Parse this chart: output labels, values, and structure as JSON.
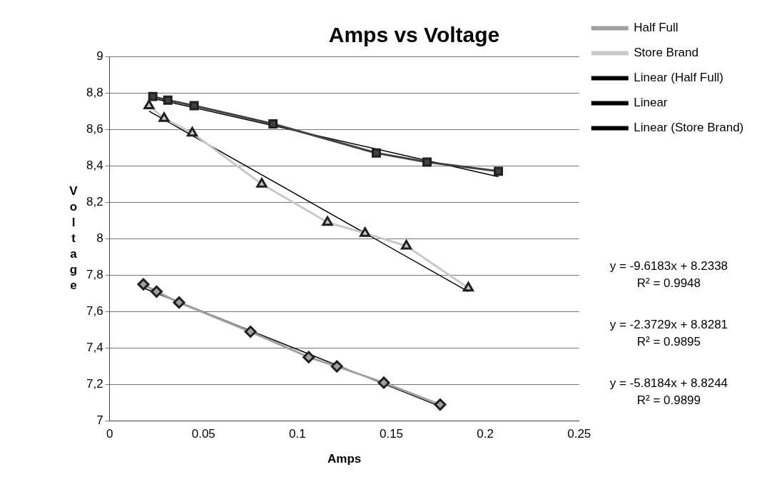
{
  "chart_data": {
    "type": "line",
    "title": "Amps vs Voltage",
    "xlabel": "Amps",
    "ylabel": "Voltage",
    "xlim": [
      0,
      0.25
    ],
    "xticks": [
      0,
      0.05,
      0.1,
      0.15,
      0.2,
      0.25
    ],
    "ylim": [
      7,
      9
    ],
    "yticks": [
      7,
      {
        "value": 7.2,
        "label": "7,2"
      },
      {
        "value": 7.4,
        "label": "7,4"
      },
      {
        "value": 7.6,
        "label": "7,6"
      },
      {
        "value": 7.8,
        "label": "7,8"
      },
      8,
      {
        "value": 8.2,
        "label": "8,2"
      },
      {
        "value": 8.4,
        "label": "8,4"
      },
      {
        "value": 8.6,
        "label": "8,6"
      },
      {
        "value": 8.8,
        "label": "8,8"
      },
      9
    ],
    "grid": "y",
    "legend": "right",
    "line_style": "solid",
    "series": [
      {
        "name": "Half Full",
        "color": "#a0a0a0",
        "marker": "diamond",
        "x": [
          0.018,
          0.025,
          0.037,
          0.075,
          0.106,
          0.121,
          0.146,
          0.176
        ],
        "values": [
          7.75,
          7.71,
          7.65,
          7.49,
          7.35,
          7.3,
          7.21,
          7.09
        ]
      },
      {
        "color": "#404040",
        "marker": "square",
        "x": [
          0.023,
          0.031,
          0.045,
          0.087,
          0.142,
          0.169,
          0.207
        ],
        "values": [
          8.78,
          8.76,
          8.73,
          8.63,
          8.47,
          8.42,
          8.37
        ]
      },
      {
        "name": "Store Brand",
        "color": "#c8c8c8",
        "marker": "triangle",
        "x": [
          0.021,
          0.029,
          0.044,
          0.081,
          0.116,
          0.136,
          0.158,
          0.191
        ],
        "values": [
          8.73,
          8.66,
          8.58,
          8.3,
          8.09,
          8.03,
          7.96,
          7.73
        ]
      },
      {
        "name": "Linear (Half Full)",
        "color": "#000000",
        "marker": "none",
        "x": [
          0.018,
          0.176
        ],
        "values": [
          7.73,
          7.08
        ]
      },
      {
        "name": "Linear",
        "color": "#000000",
        "marker": "none",
        "x": [
          0.023,
          0.207
        ],
        "values": [
          8.77,
          8.34
        ]
      },
      {
        "name": "Linear (Store Brand)",
        "color": "#000000",
        "marker": "none",
        "x": [
          0.021,
          0.191
        ],
        "values": [
          8.7,
          7.71
        ]
      }
    ],
    "annotations": [
      "y = -9.6183x + 8.2338",
      "R² = 0.9948",
      "y = -2.3729x + 8.8281",
      "R² = 0.9895",
      "y = -5.8184x + 8.8244",
      "R² = 0.9899"
    ]
  }
}
